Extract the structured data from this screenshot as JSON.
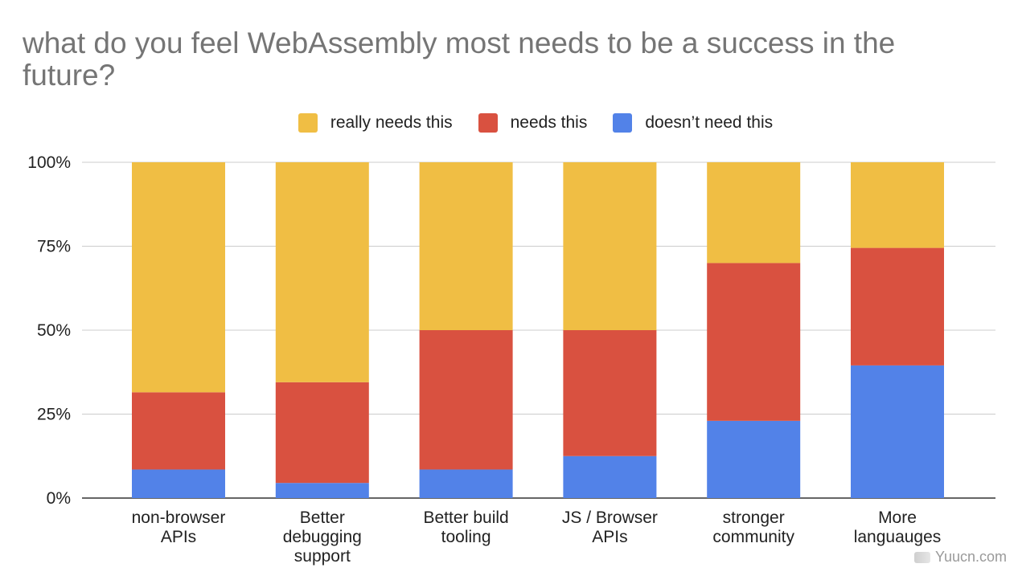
{
  "chart_data": {
    "type": "bar",
    "stacked": true,
    "percent_stacked": true,
    "title": "what do you feel WebAssembly most needs to be a success in the future?",
    "xlabel": "",
    "ylabel": "",
    "ylim": [
      0,
      100
    ],
    "y_ticks": [
      "0%",
      "25%",
      "50%",
      "75%",
      "100%"
    ],
    "y_tick_values": [
      0,
      25,
      50,
      75,
      100
    ],
    "grid": true,
    "legend_position": "top-center",
    "categories": [
      [
        "non-browser",
        "APIs"
      ],
      [
        "Better",
        "debugging",
        "support"
      ],
      [
        "Better build",
        "tooling"
      ],
      [
        "JS / Browser",
        "APIs"
      ],
      [
        "stronger",
        "community"
      ],
      [
        "More",
        "languauges"
      ]
    ],
    "series": [
      {
        "name": "doesn’t need this",
        "color": "#5282E8",
        "values": [
          8.5,
          4.5,
          8.5,
          12.5,
          23,
          39.5
        ]
      },
      {
        "name": "needs this",
        "color": "#D95140",
        "values": [
          23,
          30,
          41.5,
          37.5,
          47,
          35
        ]
      },
      {
        "name": "really needs this",
        "color": "#F0BE44",
        "values": [
          68.5,
          65.5,
          50,
          50,
          30,
          25.5
        ]
      }
    ],
    "legend_order": [
      "really needs this",
      "needs this",
      "doesn’t need this"
    ]
  },
  "watermark": {
    "text": "Yuucn.com"
  }
}
